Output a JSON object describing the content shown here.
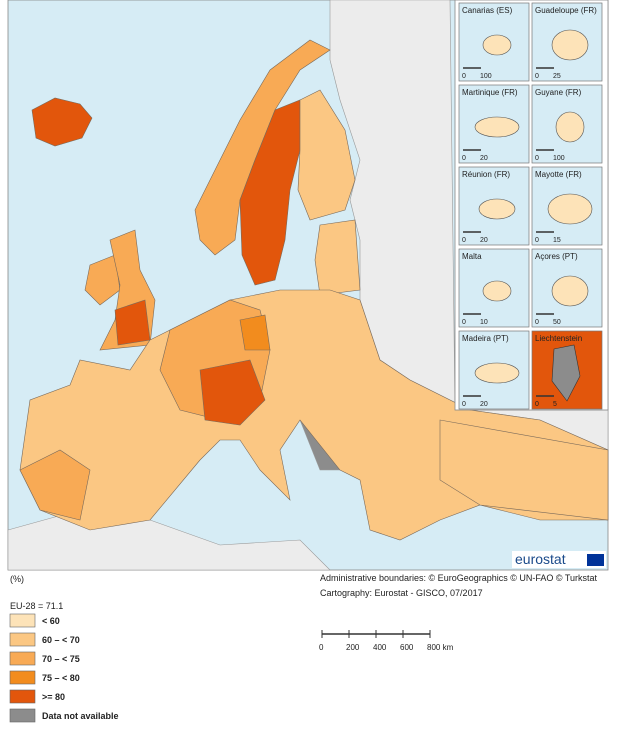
{
  "insets": [
    {
      "label": "Canarias (ES)",
      "scale": [
        0,
        100
      ]
    },
    {
      "label": "Guadeloupe (FR)",
      "scale": [
        0,
        25
      ]
    },
    {
      "label": "Martinique (FR)",
      "scale": [
        0,
        20
      ]
    },
    {
      "label": "Guyane (FR)",
      "scale": [
        0,
        100
      ]
    },
    {
      "label": "Réunion (FR)",
      "scale": [
        0,
        20
      ]
    },
    {
      "label": "Mayotte (FR)",
      "scale": [
        0,
        15
      ]
    },
    {
      "label": "Malta",
      "scale": [
        0,
        10
      ]
    },
    {
      "label": "Açores (PT)",
      "scale": [
        0,
        50
      ]
    },
    {
      "label": "Madeira (PT)",
      "scale": [
        0,
        20
      ]
    },
    {
      "label": "Liechtenstein",
      "scale": [
        0,
        5
      ]
    }
  ],
  "logo": "eurostat",
  "legend": {
    "unit": "(%)",
    "reference": "EU-28 = 71.1",
    "classes": [
      {
        "label": "< 60",
        "color": "#fde3b8"
      },
      {
        "label": "60 – < 70",
        "color": "#fbc783"
      },
      {
        "label": "70 – < 75",
        "color": "#f8aa55"
      },
      {
        "label": "75 – < 80",
        "color": "#f28c1e"
      },
      {
        "label": ">= 80",
        "color": "#e2560c"
      },
      {
        "label": "Data not available",
        "color": "#8c8c8c"
      }
    ]
  },
  "credits": [
    "Administrative boundaries: © EuroGeographics © UN-FAO © Turkstat",
    "Cartography: Eurostat - GISCO, 07/2017"
  ],
  "scale_bar": [
    0,
    200,
    400,
    600,
    {
      "value": 800,
      "label": "800 km"
    }
  ]
}
